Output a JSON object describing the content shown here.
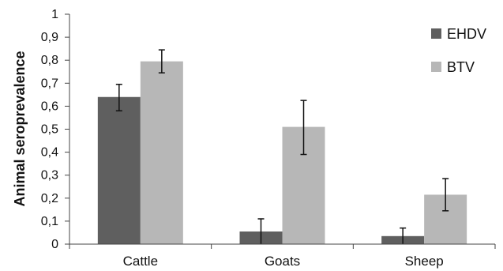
{
  "chart_data": {
    "type": "bar",
    "title": "",
    "xlabel": "",
    "ylabel": "Animal seroprevalence",
    "ylim": [
      0,
      1
    ],
    "y_ticks": [
      "0",
      "0,1",
      "0,2",
      "0,3",
      "0,4",
      "0,5",
      "0,6",
      "0,7",
      "0,8",
      "0,9",
      "1"
    ],
    "categories": [
      "Cattle",
      "Goats",
      "Sheep"
    ],
    "legend_position": "top-right",
    "grid": false,
    "series": [
      {
        "name": "EHDV",
        "color": "#5f5f5f",
        "values": [
          0.64,
          0.055,
          0.035
        ],
        "error_low": [
          0.58,
          0.0,
          0.0
        ],
        "error_high": [
          0.695,
          0.11,
          0.07
        ]
      },
      {
        "name": "BTV",
        "color": "#b7b7b7",
        "values": [
          0.795,
          0.51,
          0.215
        ],
        "error_low": [
          0.745,
          0.39,
          0.145
        ],
        "error_high": [
          0.845,
          0.625,
          0.285
        ]
      }
    ]
  }
}
